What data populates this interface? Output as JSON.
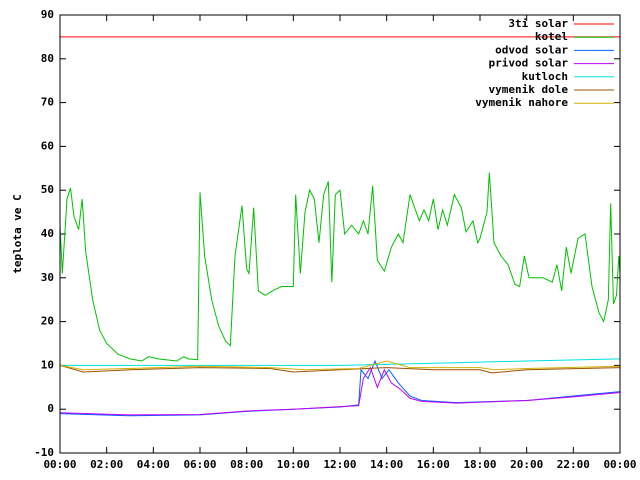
{
  "chart_data": {
    "type": "line",
    "ylabel": "teplota ve C",
    "xlim": [
      0,
      24
    ],
    "ylim": [
      -10,
      90
    ],
    "yticks": [
      -10,
      0,
      10,
      20,
      30,
      40,
      50,
      60,
      70,
      80,
      90
    ],
    "xticks": [
      {
        "value": 0,
        "label": "00:00"
      },
      {
        "value": 2,
        "label": "02:00"
      },
      {
        "value": 4,
        "label": "04:00"
      },
      {
        "value": 6,
        "label": "06:00"
      },
      {
        "value": 8,
        "label": "08:00"
      },
      {
        "value": 10,
        "label": "10:00"
      },
      {
        "value": 12,
        "label": "12:00"
      },
      {
        "value": 14,
        "label": "14:00"
      },
      {
        "value": 16,
        "label": "16:00"
      },
      {
        "value": 18,
        "label": "18:00"
      },
      {
        "value": 20,
        "label": "20:00"
      },
      {
        "value": 22,
        "label": "22:00"
      },
      {
        "value": 24,
        "label": "00:00"
      }
    ],
    "legend": "top-right",
    "series": [
      {
        "name": "3ti solar",
        "color": "#ff0000",
        "x": [
          0,
          24
        ],
        "values": [
          85,
          85
        ]
      },
      {
        "name": "kotel",
        "color": "#00c000",
        "x": [
          0,
          0.1,
          0.3,
          0.45,
          0.6,
          0.8,
          0.95,
          1.1,
          1.4,
          1.7,
          2.0,
          2.5,
          3.0,
          3.5,
          3.8,
          4.2,
          5.0,
          5.3,
          5.5,
          5.9,
          6.0,
          6.2,
          6.5,
          6.8,
          7.1,
          7.3,
          7.5,
          7.8,
          8.0,
          8.1,
          8.3,
          8.5,
          8.8,
          9.1,
          9.5,
          10.0,
          10.1,
          10.3,
          10.5,
          10.7,
          10.9,
          11.1,
          11.3,
          11.5,
          11.65,
          11.8,
          12.0,
          12.2,
          12.5,
          12.8,
          13.0,
          13.2,
          13.4,
          13.6,
          13.9,
          14.2,
          14.5,
          14.7,
          15.0,
          15.2,
          15.4,
          15.6,
          15.8,
          16.0,
          16.2,
          16.4,
          16.6,
          16.9,
          17.2,
          17.4,
          17.7,
          17.9,
          18.0,
          18.3,
          18.4,
          18.6,
          18.9,
          19.2,
          19.5,
          19.7,
          19.9,
          20.1,
          20.4,
          20.7,
          21.1,
          21.3,
          21.5,
          21.7,
          21.9,
          22.2,
          22.5,
          22.8,
          23.1,
          23.3,
          23.5,
          23.6,
          23.72,
          23.85,
          23.95,
          24.0
        ],
        "values": [
          42,
          31,
          48,
          50.5,
          44,
          41,
          48,
          36,
          25,
          18,
          15,
          12.5,
          11.5,
          11,
          12,
          11.5,
          11,
          12,
          11.5,
          11.3,
          49.5,
          35,
          25,
          19,
          15.5,
          14.5,
          35,
          46.5,
          32,
          31,
          46,
          27,
          26,
          27,
          28,
          28,
          49,
          31,
          45,
          50,
          48,
          38,
          49,
          52,
          29,
          49,
          50,
          40,
          42,
          40,
          43,
          40,
          51,
          34,
          31.5,
          37,
          40,
          38,
          49,
          46,
          43,
          45.5,
          43,
          48,
          41,
          45.5,
          42,
          49,
          46,
          40.5,
          43,
          38,
          39,
          45,
          54,
          38,
          35,
          33,
          28.5,
          28,
          35,
          30,
          30,
          30,
          29,
          33,
          27,
          37,
          31,
          39,
          40,
          28,
          22,
          20,
          25,
          47,
          24,
          26,
          35,
          31
        ]
      },
      {
        "name": "odvod solar",
        "color": "#0060ff",
        "x": [
          0,
          3,
          6,
          8,
          10,
          12,
          12.8,
          12.9,
          13.2,
          13.5,
          13.8,
          14.1,
          14.5,
          15,
          15.5,
          17,
          20,
          22,
          24
        ],
        "values": [
          -1,
          -1.5,
          -1.3,
          -0.5,
          0,
          0.5,
          1,
          9,
          7,
          11,
          7,
          9,
          6,
          3,
          2,
          1.5,
          2,
          3,
          4
        ]
      },
      {
        "name": "privod solar",
        "color": "#c000ff",
        "x": [
          0,
          3,
          6,
          8,
          10,
          12,
          12.8,
          13.0,
          13.3,
          13.6,
          13.9,
          14.2,
          14.6,
          15,
          15.5,
          17,
          20,
          22,
          24
        ],
        "values": [
          -0.8,
          -1.3,
          -1.2,
          -0.4,
          0,
          0.6,
          0.8,
          7,
          9.5,
          5,
          9,
          6,
          4.5,
          2.5,
          1.8,
          1.4,
          2,
          2.8,
          3.8
        ]
      },
      {
        "name": "kutloch",
        "color": "#00e0e0",
        "x": [
          0,
          12,
          16,
          20,
          24
        ],
        "values": [
          10,
          10,
          10.5,
          11,
          11.5
        ]
      },
      {
        "name": "vymenik dole",
        "color": "#a05000",
        "x": [
          0,
          1,
          3,
          6,
          9,
          10,
          12,
          14,
          16,
          18,
          18.5,
          20,
          24
        ],
        "values": [
          10,
          8.5,
          9,
          9.5,
          9.3,
          8.5,
          9,
          9.5,
          9,
          9,
          8.3,
          9,
          9.5
        ]
      },
      {
        "name": "vymenik nahore",
        "color": "#d0b000",
        "x": [
          0,
          1,
          3,
          6,
          9,
          10.5,
          12.8,
          14,
          15,
          18,
          18.6,
          20,
          24
        ],
        "values": [
          10,
          9,
          9.3,
          9.8,
          9.5,
          9,
          9.3,
          11,
          9.5,
          9.5,
          9,
          9.3,
          9.8
        ]
      }
    ]
  }
}
